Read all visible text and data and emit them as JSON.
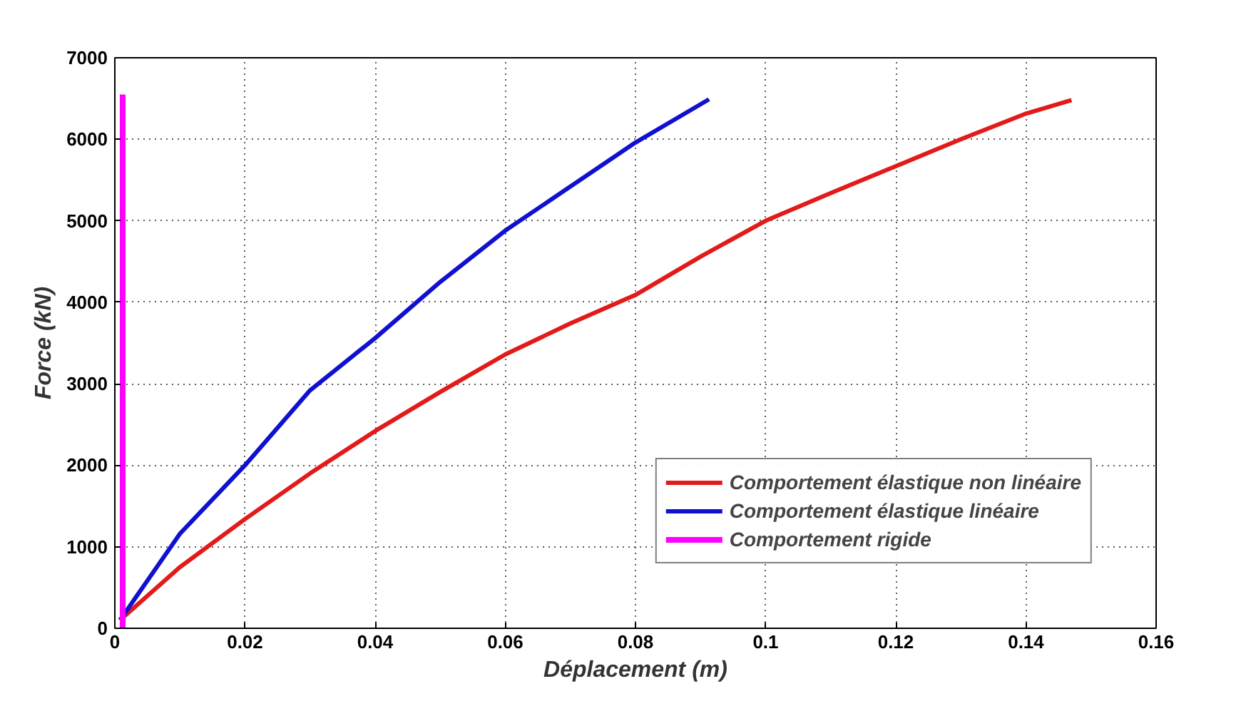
{
  "chart_data": {
    "type": "line",
    "xlabel": "Déplacement (m)",
    "ylabel": "Force (kN)",
    "xlim": [
      0,
      0.16
    ],
    "xticks": [
      0,
      0.02,
      0.04,
      0.06,
      0.08,
      0.1,
      0.12,
      0.14,
      0.16
    ],
    "ylim": [
      0,
      7000
    ],
    "yticks": [
      0,
      1000,
      2000,
      3000,
      4000,
      5000,
      6000,
      7000
    ],
    "grid": true,
    "legend": "bottom right",
    "line_style": "solid",
    "series": [
      {
        "name": "Comportement élastique non linéaire",
        "color": "#e31a1a",
        "x": [
          0.0008,
          0.01,
          0.02,
          0.03,
          0.04,
          0.05,
          0.06,
          0.07,
          0.08,
          0.09,
          0.1,
          0.11,
          0.12,
          0.13,
          0.14,
          0.147
        ],
        "values": [
          100,
          750,
          1340,
          1900,
          2420,
          2900,
          3360,
          3740,
          4090,
          4560,
          5000,
          5340,
          5670,
          6000,
          6315,
          6480
        ]
      },
      {
        "name": "Comportement élastique linéaire",
        "color": "#1010d0",
        "x": [
          0.0008,
          0.01,
          0.02,
          0.03,
          0.04,
          0.05,
          0.06,
          0.07,
          0.08,
          0.0913
        ],
        "values": [
          100,
          1160,
          2000,
          2920,
          3560,
          4250,
          4880,
          5420,
          5960,
          6490
        ]
      },
      {
        "name": "Comportement rigide",
        "color": "#ff00ff",
        "x": [
          0.0012,
          0.0012
        ],
        "values": [
          0,
          6550
        ]
      }
    ]
  }
}
